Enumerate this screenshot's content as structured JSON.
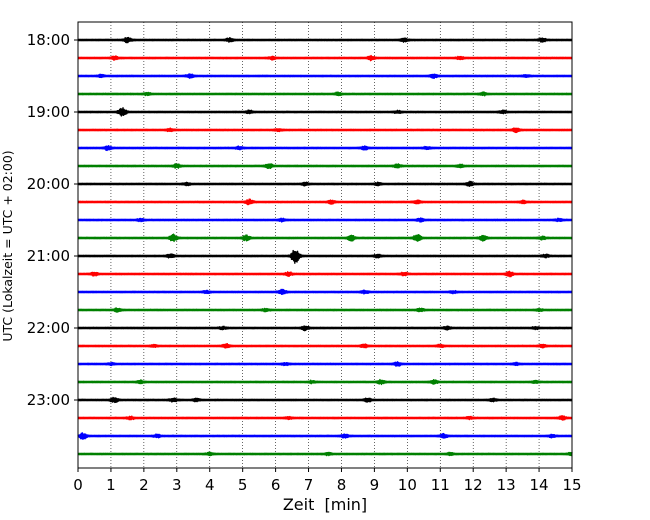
{
  "chart_data": {
    "type": "line",
    "title": "",
    "xlabel": "Zeit  [min]",
    "ylabel": "UTC (Lokalzeit = UTC + 02:00)",
    "xlim": [
      0,
      15
    ],
    "x_ticks": [
      "0",
      "1",
      "2",
      "3",
      "4",
      "5",
      "6",
      "7",
      "8",
      "9",
      "10",
      "11",
      "12",
      "13",
      "14",
      "15"
    ],
    "y_tick_labels": [
      "18:00",
      "19:00",
      "20:00",
      "21:00",
      "22:00",
      "23:00"
    ],
    "grid": "vertical-dotted",
    "trace_colors": [
      "#000000",
      "#ff0000",
      "#0000ff",
      "#008000"
    ],
    "traces": [
      {
        "start": "18:00",
        "events": [
          [
            1.5,
            0.6
          ],
          [
            4.6,
            0.4
          ],
          [
            9.9,
            0.5
          ],
          [
            14.1,
            0.45
          ]
        ]
      },
      {
        "start": "18:15",
        "events": [
          [
            1.1,
            0.4
          ],
          [
            5.9,
            0.35
          ],
          [
            8.9,
            0.5
          ],
          [
            11.6,
            0.35
          ]
        ]
      },
      {
        "start": "18:30",
        "events": [
          [
            0.7,
            0.3
          ],
          [
            3.4,
            0.4
          ],
          [
            10.8,
            0.45
          ],
          [
            13.6,
            0.3
          ]
        ]
      },
      {
        "start": "18:45",
        "events": [
          [
            2.1,
            0.3
          ],
          [
            7.9,
            0.35
          ],
          [
            12.3,
            0.35
          ]
        ]
      },
      {
        "start": "19:00",
        "events": [
          [
            1.35,
            1.0
          ],
          [
            5.2,
            0.35
          ],
          [
            9.7,
            0.3
          ],
          [
            12.9,
            0.35
          ]
        ]
      },
      {
        "start": "19:15",
        "events": [
          [
            2.8,
            0.35
          ],
          [
            6.1,
            0.3
          ],
          [
            13.3,
            0.5
          ]
        ]
      },
      {
        "start": "19:30",
        "events": [
          [
            0.9,
            0.5
          ],
          [
            4.9,
            0.35
          ],
          [
            8.7,
            0.4
          ],
          [
            10.6,
            0.3
          ]
        ]
      },
      {
        "start": "19:45",
        "events": [
          [
            3.0,
            0.45
          ],
          [
            5.8,
            0.55
          ],
          [
            9.7,
            0.4
          ],
          [
            11.6,
            0.35
          ]
        ]
      },
      {
        "start": "20:00",
        "events": [
          [
            3.3,
            0.3
          ],
          [
            6.9,
            0.35
          ],
          [
            9.1,
            0.3
          ],
          [
            11.9,
            0.5
          ]
        ]
      },
      {
        "start": "20:15",
        "events": [
          [
            5.2,
            0.6
          ],
          [
            7.7,
            0.45
          ],
          [
            10.3,
            0.4
          ],
          [
            13.5,
            0.35
          ]
        ]
      },
      {
        "start": "20:30",
        "events": [
          [
            1.9,
            0.3
          ],
          [
            6.2,
            0.35
          ],
          [
            10.4,
            0.35
          ],
          [
            14.6,
            0.3
          ]
        ]
      },
      {
        "start": "20:45",
        "events": [
          [
            2.9,
            0.8
          ],
          [
            5.1,
            0.6
          ],
          [
            8.3,
            0.6
          ],
          [
            10.3,
            0.8
          ],
          [
            12.3,
            0.6
          ],
          [
            14.1,
            0.35
          ]
        ]
      },
      {
        "start": "21:00",
        "events": [
          [
            2.8,
            0.45
          ],
          [
            6.6,
            1.7
          ],
          [
            9.1,
            0.4
          ],
          [
            14.2,
            0.35
          ]
        ]
      },
      {
        "start": "21:15",
        "events": [
          [
            0.5,
            0.4
          ],
          [
            6.4,
            0.45
          ],
          [
            9.9,
            0.35
          ],
          [
            13.1,
            0.6
          ]
        ]
      },
      {
        "start": "21:30",
        "events": [
          [
            3.9,
            0.3
          ],
          [
            6.2,
            0.6
          ],
          [
            8.7,
            0.35
          ],
          [
            11.4,
            0.3
          ]
        ]
      },
      {
        "start": "21:45",
        "events": [
          [
            1.2,
            0.4
          ],
          [
            5.7,
            0.35
          ],
          [
            10.4,
            0.35
          ],
          [
            14.0,
            0.3
          ]
        ]
      },
      {
        "start": "22:00",
        "events": [
          [
            4.4,
            0.3
          ],
          [
            6.9,
            0.5
          ],
          [
            11.2,
            0.35
          ],
          [
            13.9,
            0.3
          ]
        ]
      },
      {
        "start": "22:15",
        "events": [
          [
            2.3,
            0.3
          ],
          [
            4.5,
            0.5
          ],
          [
            8.7,
            0.35
          ],
          [
            11.0,
            0.35
          ],
          [
            14.1,
            0.35
          ]
        ]
      },
      {
        "start": "22:30",
        "events": [
          [
            1.0,
            0.25
          ],
          [
            6.3,
            0.3
          ],
          [
            9.7,
            0.45
          ],
          [
            13.3,
            0.3
          ]
        ]
      },
      {
        "start": "22:45",
        "events": [
          [
            1.9,
            0.35
          ],
          [
            7.1,
            0.3
          ],
          [
            9.2,
            0.5
          ],
          [
            10.8,
            0.45
          ],
          [
            13.9,
            0.3
          ]
        ]
      },
      {
        "start": "23:00",
        "events": [
          [
            1.1,
            0.6
          ],
          [
            2.9,
            0.45
          ],
          [
            3.6,
            0.35
          ],
          [
            8.8,
            0.45
          ],
          [
            12.6,
            0.35
          ]
        ]
      },
      {
        "start": "23:15",
        "events": [
          [
            1.6,
            0.35
          ],
          [
            6.4,
            0.3
          ],
          [
            11.9,
            0.3
          ],
          [
            14.7,
            0.45
          ]
        ]
      },
      {
        "start": "23:30",
        "events": [
          [
            0.15,
            0.7
          ],
          [
            2.4,
            0.35
          ],
          [
            8.1,
            0.4
          ],
          [
            11.1,
            0.45
          ],
          [
            14.4,
            0.35
          ]
        ]
      },
      {
        "start": "23:45",
        "events": [
          [
            4.0,
            0.3
          ],
          [
            7.6,
            0.3
          ],
          [
            11.3,
            0.3
          ],
          [
            15.0,
            0.45
          ]
        ]
      }
    ]
  }
}
